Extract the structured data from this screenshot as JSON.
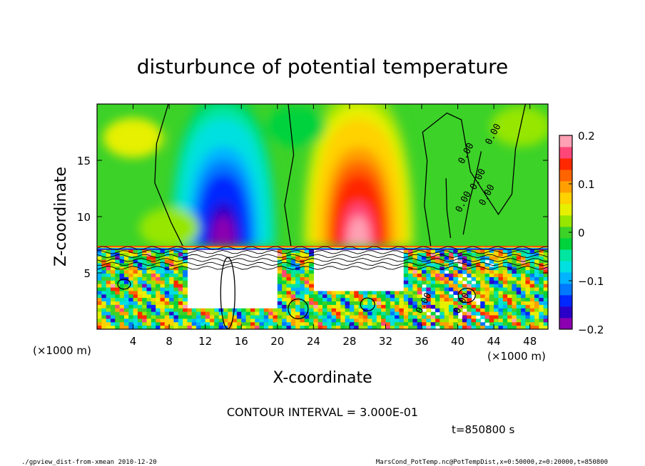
{
  "chart_data": {
    "type": "heatmap",
    "title": "disturbunce of potential temperature",
    "xlabel": "X-coordinate",
    "ylabel": "Z-coordinate",
    "x_unit_left": "(×1000 m)",
    "x_unit_right": "(×1000 m)",
    "xlim": [
      0,
      50
    ],
    "ylim": [
      0,
      20
    ],
    "xticks": [
      "4",
      "8",
      "12",
      "16",
      "20",
      "24",
      "28",
      "32",
      "36",
      "40",
      "44",
      "48"
    ],
    "xtick_values": [
      4,
      8,
      12,
      16,
      20,
      24,
      28,
      32,
      36,
      40,
      44,
      48
    ],
    "yticks": [
      "5",
      "10",
      "15"
    ],
    "ytick_values": [
      5,
      10,
      15
    ],
    "colorbar": {
      "min": -0.2,
      "max": 0.2,
      "tick_labels": [
        "0.2",
        "0.1",
        "0",
        "−0.1",
        "−0.2"
      ],
      "tick_values": [
        0.2,
        0.1,
        0,
        -0.1,
        -0.2
      ],
      "colors": [
        "#8b00b0",
        "#2a00c8",
        "#0028ff",
        "#0078ff",
        "#00b4ff",
        "#00e0e0",
        "#00e6a0",
        "#00d23c",
        "#3cd228",
        "#96e600",
        "#e6f000",
        "#ffd200",
        "#ffa000",
        "#ff6400",
        "#ff2800",
        "#ff4678",
        "#ffa0b4"
      ]
    },
    "features": [
      {
        "kind": "cold_anomaly",
        "x_center": 14,
        "z_center": 12,
        "value": -0.2
      },
      {
        "kind": "warm_anomaly",
        "x_center": 29,
        "z_center": 12,
        "value": 0.2
      }
    ],
    "contour_label": "0.00",
    "contour_interval_text": "CONTOUR INTERVAL = 3.000E-01",
    "time_text": "t=850800 s"
  },
  "footer": {
    "left": "./gpview_dist-from-xmean  2010-12-20",
    "right": "MarsCond_PotTemp.nc@PotTempDist,x=0:50000,z=0:20000,t=850800"
  }
}
